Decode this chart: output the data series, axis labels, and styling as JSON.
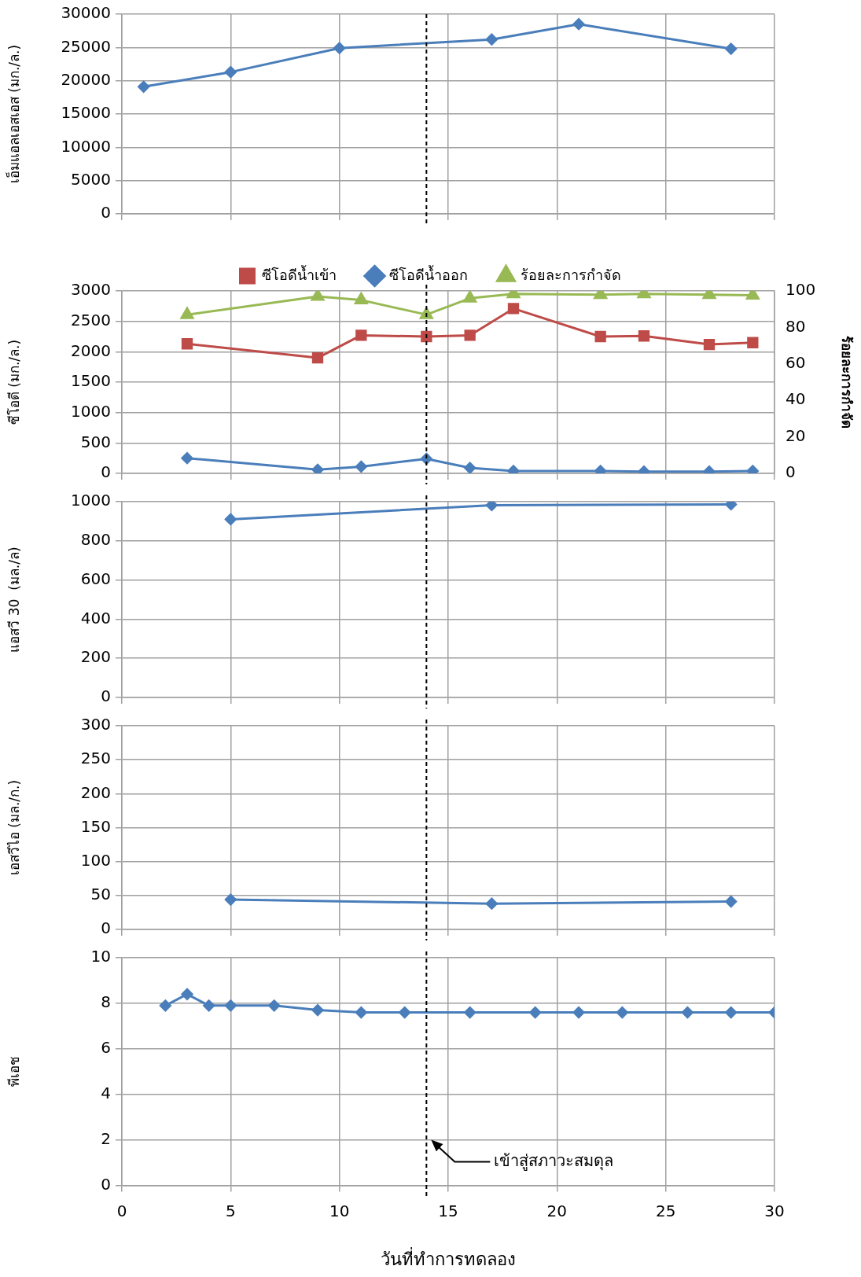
{
  "chart_data": [
    {
      "type": "line",
      "ylabel": "เอ็มแอลเอสเอส (มก./ล.)",
      "xlim": [
        0,
        30
      ],
      "xticks": [
        0,
        5,
        10,
        15,
        20,
        25,
        30
      ],
      "ylim": [
        0,
        30000
      ],
      "yticks": [
        0,
        5000,
        10000,
        15000,
        20000,
        25000,
        30000
      ],
      "grid": true,
      "tick_labels": "y",
      "marker": "diamond",
      "series": [
        {
          "color": "#4a7ebb",
          "x": [
            1,
            5,
            10,
            17,
            21,
            28
          ],
          "values": [
            19100,
            21300,
            24900,
            26200,
            28500,
            24800
          ]
        }
      ],
      "ref_lines": [
        {
          "axis": "x",
          "value": 14,
          "color": "#000000",
          "line_style": "dashed"
        }
      ]
    },
    {
      "type": "line",
      "ylabel": "ซีโอดี (มก./ล.)",
      "y2label": "ร้อยละการกำจัด",
      "xlim": [
        0,
        30
      ],
      "xticks": [
        0,
        5,
        10,
        15,
        20,
        25,
        30
      ],
      "ylim": [
        0,
        3000
      ],
      "yticks": [
        0,
        500,
        1000,
        1500,
        2000,
        2500,
        3000
      ],
      "y2lim": [
        0,
        100
      ],
      "y2ticks": [
        0,
        20,
        40,
        60,
        80,
        100
      ],
      "grid": true,
      "tick_labels": "y",
      "legend": "top",
      "series": [
        {
          "name": "ซีโอดีน้ำเข้า",
          "color": "#be4b48",
          "marker": "square",
          "x": [
            3,
            9,
            11,
            14,
            16,
            18,
            22,
            24,
            27,
            29
          ],
          "values": [
            2130,
            1900,
            2270,
            2250,
            2270,
            2710,
            2250,
            2260,
            2120,
            2150
          ]
        },
        {
          "name": "ซีโอดีน้ำออก",
          "color": "#4a7ebb",
          "marker": "diamond",
          "x": [
            3,
            9,
            11,
            14,
            16,
            18,
            22,
            24,
            27,
            29
          ],
          "values": [
            250,
            60,
            110,
            240,
            90,
            40,
            40,
            30,
            30,
            40
          ]
        },
        {
          "name": "ร้อยละการกำจัด",
          "color": "#98b954",
          "marker": "triangle",
          "axis": "y2",
          "x": [
            3,
            9,
            11,
            14,
            16,
            18,
            22,
            24,
            27,
            29
          ],
          "values": [
            87,
            97,
            95,
            87,
            96,
            98.4,
            98,
            98.4,
            98,
            97.6
          ]
        }
      ],
      "ref_lines": [
        {
          "axis": "x",
          "value": 14,
          "color": "#000000",
          "line_style": "dashed"
        }
      ]
    },
    {
      "type": "line",
      "ylabel": "แอสวี 30  (มล./ล)",
      "xlim": [
        0,
        30
      ],
      "xticks": [
        0,
        5,
        10,
        15,
        20,
        25,
        30
      ],
      "ylim": [
        0,
        1000
      ],
      "yticks": [
        0,
        200,
        400,
        600,
        800,
        1000
      ],
      "grid": true,
      "tick_labels": "y",
      "marker": "diamond",
      "series": [
        {
          "color": "#4a7ebb",
          "x": [
            5,
            17,
            28
          ],
          "values": [
            910,
            982,
            986
          ]
        }
      ],
      "ref_lines": [
        {
          "axis": "x",
          "value": 14,
          "color": "#000000",
          "line_style": "dashed"
        }
      ]
    },
    {
      "type": "line",
      "ylabel": "เอสวีไอ (มล./ก.)",
      "xlim": [
        0,
        30
      ],
      "xticks": [
        0,
        5,
        10,
        15,
        20,
        25,
        30
      ],
      "ylim": [
        0,
        300
      ],
      "yticks": [
        0,
        50,
        100,
        150,
        200,
        250,
        300
      ],
      "grid": true,
      "tick_labels": "y",
      "marker": "diamond",
      "series": [
        {
          "color": "#4a7ebb",
          "x": [
            5,
            17,
            28
          ],
          "values": [
            44,
            38,
            41
          ]
        }
      ],
      "ref_lines": [
        {
          "axis": "x",
          "value": 14,
          "color": "#000000",
          "line_style": "dashed"
        }
      ]
    },
    {
      "type": "line",
      "ylabel": "พีเอช",
      "xlabel": "วันที่ทำการทดลอง",
      "xlim": [
        0,
        30
      ],
      "xticks": [
        0,
        5,
        10,
        15,
        20,
        25,
        30
      ],
      "ylim": [
        0,
        10
      ],
      "yticks": [
        0,
        2,
        4,
        6,
        8,
        10
      ],
      "grid": true,
      "marker": "diamond",
      "series": [
        {
          "color": "#4a7ebb",
          "x": [
            2,
            3,
            4,
            5,
            7,
            9,
            11,
            13,
            16,
            19,
            21,
            23,
            26,
            28,
            30
          ],
          "values": [
            7.9,
            8.4,
            7.9,
            7.9,
            7.9,
            7.7,
            7.6,
            7.6,
            7.6,
            7.6,
            7.6,
            7.6,
            7.6,
            7.6,
            7.6
          ]
        }
      ],
      "ref_lines": [
        {
          "axis": "x",
          "value": 14,
          "color": "#000000",
          "line_style": "dashed"
        }
      ],
      "annotations": [
        "เข้าสู่สภาวะสมดุล"
      ]
    }
  ]
}
